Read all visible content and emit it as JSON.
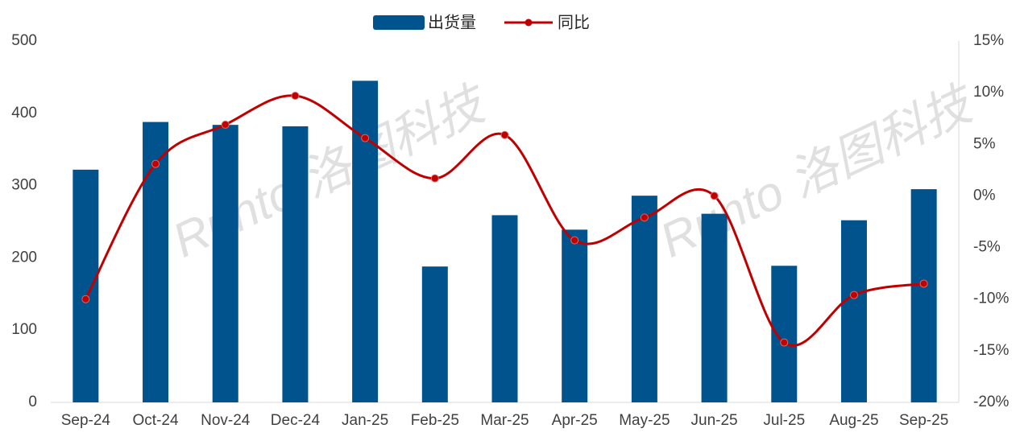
{
  "chart_data": {
    "type": "bar_line",
    "categories": [
      "Sep-24",
      "Oct-24",
      "Nov-24",
      "Dec-24",
      "Jan-25",
      "Feb-25",
      "Mar-25",
      "Apr-25",
      "May-25",
      "Jun-25",
      "Jul-25",
      "Aug-25",
      "Sep-25"
    ],
    "series": [
      {
        "name": "出货量",
        "type": "bar",
        "color": "#00538c",
        "values": [
          322,
          388,
          384,
          382,
          445,
          188,
          259,
          239,
          286,
          261,
          189,
          252,
          295
        ]
      },
      {
        "name": "同比",
        "type": "line",
        "axis": "y2",
        "color": "#c00000",
        "values": [
          -10.0,
          3.1,
          6.9,
          9.7,
          5.6,
          1.7,
          5.9,
          -4.3,
          -2.1,
          0.0,
          -14.2,
          -9.6,
          -8.5
        ]
      }
    ],
    "ylim": [
      0,
      500
    ],
    "yticks": [
      0,
      100,
      200,
      300,
      400,
      500
    ],
    "y2lim": [
      -20,
      15
    ],
    "y2ticks": [
      {
        "value": -20,
        "label": "-20%"
      },
      {
        "value": -15,
        "label": "-15%"
      },
      {
        "value": -10,
        "label": "-10%"
      },
      {
        "value": -5,
        "label": "-5%"
      },
      {
        "value": 0,
        "label": "0%"
      },
      {
        "value": 5,
        "label": "5%"
      },
      {
        "value": 10,
        "label": "10%"
      },
      {
        "value": 15,
        "label": "15%"
      }
    ],
    "watermark": "Runto 洛图科技"
  }
}
